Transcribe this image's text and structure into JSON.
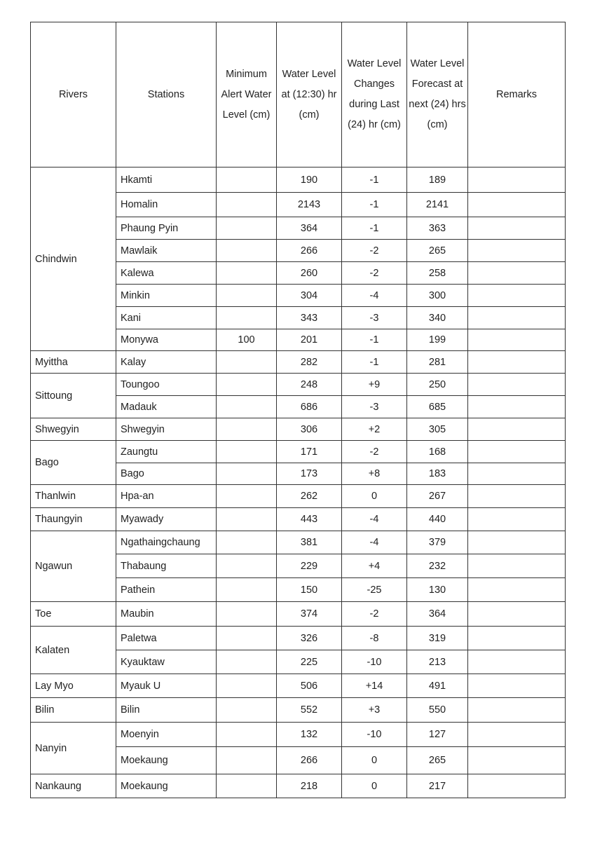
{
  "headers": {
    "river": "Rivers",
    "station": "Stations",
    "min_alert": "Minimum Alert Water Level (cm)",
    "level": "Water Level at (12:30) hr (cm)",
    "change": "Water Level Changes during Last (24) hr (cm)",
    "forecast": "Water Level Forecast at next (24) hrs (cm)",
    "remarks": "Remarks"
  },
  "groups": [
    {
      "river": "Chindwin",
      "stations": [
        {
          "name": "Hkamti",
          "min_alert": "",
          "level": "190",
          "change": "-1",
          "forecast": "189",
          "remarks": ""
        },
        {
          "name": "Homalin",
          "min_alert": "",
          "level": "2143",
          "change": "-1",
          "forecast": "2141",
          "remarks": ""
        },
        {
          "name": "Phaung Pyin",
          "min_alert": "",
          "level": "364",
          "change": "-1",
          "forecast": "363",
          "remarks": ""
        },
        {
          "name": "Mawlaik",
          "min_alert": "",
          "level": "266",
          "change": "-2",
          "forecast": "265",
          "remarks": ""
        },
        {
          "name": "Kalewa",
          "min_alert": "",
          "level": "260",
          "change": "-2",
          "forecast": "258",
          "remarks": ""
        },
        {
          "name": "Minkin",
          "min_alert": "",
          "level": "304",
          "change": "-4",
          "forecast": "300",
          "remarks": ""
        },
        {
          "name": "Kani",
          "min_alert": "",
          "level": "343",
          "change": "-3",
          "forecast": "340",
          "remarks": ""
        },
        {
          "name": "Monywa",
          "min_alert": "100",
          "level": "201",
          "change": "-1",
          "forecast": "199",
          "remarks": ""
        }
      ]
    },
    {
      "river": "Myittha",
      "stations": [
        {
          "name": "Kalay",
          "min_alert": "",
          "level": "282",
          "change": "-1",
          "forecast": "281",
          "remarks": ""
        }
      ]
    },
    {
      "river": "Sittoung",
      "stations": [
        {
          "name": "Toungoo",
          "min_alert": "",
          "level": "248",
          "change": "+9",
          "forecast": "250",
          "remarks": ""
        },
        {
          "name": "Madauk",
          "min_alert": "",
          "level": "686",
          "change": "-3",
          "forecast": "685",
          "remarks": ""
        }
      ]
    },
    {
      "river": "Shwegyin",
      "stations": [
        {
          "name": "Shwegyin",
          "min_alert": "",
          "level": "306",
          "change": "+2",
          "forecast": "305",
          "remarks": ""
        }
      ]
    },
    {
      "river": "Bago",
      "stations": [
        {
          "name": "Zaungtu",
          "min_alert": "",
          "level": "171",
          "change": "-2",
          "forecast": "168",
          "remarks": ""
        },
        {
          "name": "Bago",
          "min_alert": "",
          "level": "173",
          "change": "+8",
          "forecast": "183",
          "remarks": ""
        }
      ]
    },
    {
      "river": "Thanlwin",
      "stations": [
        {
          "name": "Hpa-an",
          "min_alert": "",
          "level": "262",
          "change": "0",
          "forecast": "267",
          "remarks": ""
        }
      ]
    },
    {
      "river": "Thaungyin",
      "stations": [
        {
          "name": "Myawady",
          "min_alert": "",
          "level": "443",
          "change": "-4",
          "forecast": "440",
          "remarks": ""
        }
      ]
    },
    {
      "river": "Ngawun",
      "stations": [
        {
          "name": "Ngathaingchaung",
          "min_alert": "",
          "level": "381",
          "change": "-4",
          "forecast": "379",
          "remarks": ""
        },
        {
          "name": "Thabaung",
          "min_alert": "",
          "level": "229",
          "change": "+4",
          "forecast": "232",
          "remarks": ""
        },
        {
          "name": "Pathein",
          "min_alert": "",
          "level": "150",
          "change": "-25",
          "forecast": "130",
          "remarks": ""
        }
      ]
    },
    {
      "river": "Toe",
      "stations": [
        {
          "name": "Maubin",
          "min_alert": "",
          "level": "374",
          "change": "-2",
          "forecast": "364",
          "remarks": ""
        }
      ]
    },
    {
      "river": "Kalaten",
      "stations": [
        {
          "name": "Paletwa",
          "min_alert": "",
          "level": "326",
          "change": "-8",
          "forecast": "319",
          "remarks": ""
        },
        {
          "name": "Kyauktaw",
          "min_alert": "",
          "level": "225",
          "change": "-10",
          "forecast": "213",
          "remarks": ""
        }
      ]
    },
    {
      "river": "Lay Myo",
      "stations": [
        {
          "name": "Myauk U",
          "min_alert": "",
          "level": "506",
          "change": "+14",
          "forecast": "491",
          "remarks": ""
        }
      ]
    },
    {
      "river": "Bilin",
      "stations": [
        {
          "name": "Bilin",
          "min_alert": "",
          "level": "552",
          "change": "+3",
          "forecast": "550",
          "remarks": ""
        }
      ]
    },
    {
      "river": "Nanyin",
      "stations": [
        {
          "name": "Moenyin",
          "min_alert": "",
          "level": "132",
          "change": "-10",
          "forecast": "127",
          "remarks": ""
        },
        {
          "name": "Moekaung",
          "min_alert": "",
          "level": "266",
          "change": "0",
          "forecast": "265",
          "remarks": ""
        }
      ]
    },
    {
      "river": "Nankaung",
      "stations": [
        {
          "name": "Moekaung",
          "min_alert": "",
          "level": "218",
          "change": "0",
          "forecast": "217",
          "remarks": ""
        }
      ]
    }
  ]
}
